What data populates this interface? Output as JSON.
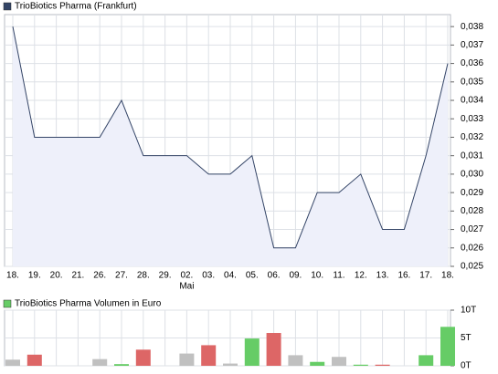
{
  "chart_data": [
    {
      "type": "area",
      "legend": "TrioBiotics Pharma (Frankfurt)",
      "color": "#334466",
      "fill": "#eef0fa",
      "categories": [
        "18.",
        "19.",
        "20.",
        "21.",
        "26.",
        "27.",
        "28.",
        "29.",
        "02.",
        "03.",
        "04.",
        "05.",
        "06.",
        "09.",
        "10.",
        "11.",
        "12.",
        "13.",
        "16.",
        "17.",
        "18."
      ],
      "month_label": "Mai",
      "month_label_at": 8,
      "values": [
        0.038,
        0.032,
        0.032,
        0.032,
        0.032,
        0.034,
        0.031,
        0.031,
        0.031,
        0.03,
        0.03,
        0.031,
        0.026,
        0.026,
        0.029,
        0.029,
        0.03,
        0.027,
        0.027,
        0.031,
        0.036
      ],
      "ylim": [
        0.025,
        0.03865
      ],
      "yticks": [
        {
          "value": 0.038,
          "label": "0,038"
        },
        {
          "value": 0.037,
          "label": "0,037"
        },
        {
          "value": 0.036,
          "label": "0,036"
        },
        {
          "value": 0.035,
          "label": "0,035"
        },
        {
          "value": 0.034,
          "label": "0,034"
        },
        {
          "value": 0.033,
          "label": "0,033"
        },
        {
          "value": 0.032,
          "label": "0,032"
        },
        {
          "value": 0.031,
          "label": "0,031"
        },
        {
          "value": 0.03,
          "label": "0,030"
        },
        {
          "value": 0.029,
          "label": "0,029"
        },
        {
          "value": 0.028,
          "label": "0,028"
        },
        {
          "value": 0.027,
          "label": "0,027"
        },
        {
          "value": 0.026,
          "label": "0,026"
        },
        {
          "value": 0.025,
          "label": "0,025"
        }
      ],
      "grid": true
    },
    {
      "type": "bar",
      "legend": "TrioBiotics Pharma Volumen in Euro",
      "color": "#66cc66",
      "values": [
        1100,
        2000,
        null,
        null,
        1200,
        300,
        2900,
        null,
        2200,
        3700,
        400,
        4900,
        5900,
        1900,
        700,
        1600,
        200,
        200,
        null,
        1900,
        7000
      ],
      "colors": [
        "#c0c0c0",
        "#dd6666",
        null,
        null,
        "#c0c0c0",
        "#66cc66",
        "#dd6666",
        null,
        "#c0c0c0",
        "#dd6666",
        "#c0c0c0",
        "#66cc66",
        "#dd6666",
        "#c0c0c0",
        "#66cc66",
        "#c0c0c0",
        "#66cc66",
        "#dd6666",
        null,
        "#66cc66",
        "#66cc66"
      ],
      "ylim": [
        0,
        10000
      ],
      "yticks": [
        {
          "value": 10000,
          "label": "10T"
        },
        {
          "value": 5000,
          "label": "5T"
        },
        {
          "value": 0,
          "label": "0T"
        }
      ],
      "grid": true
    }
  ]
}
